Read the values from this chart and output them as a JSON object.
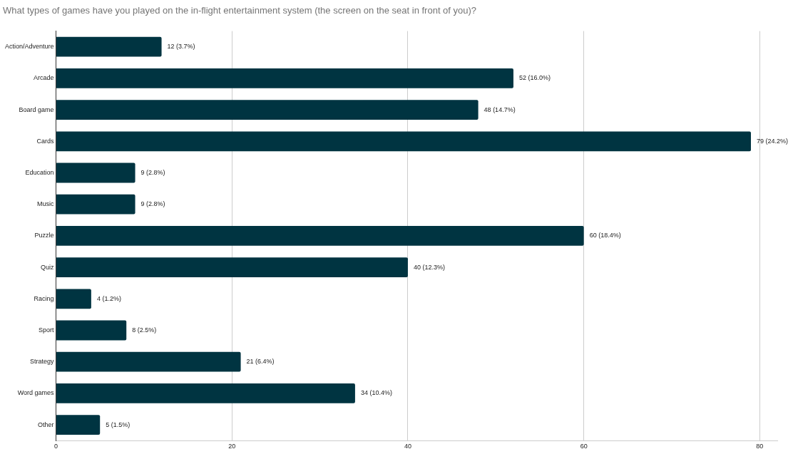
{
  "chart_data": {
    "type": "bar",
    "orientation": "horizontal",
    "title": "What types of games have you played on the in-flight entertainment system (the screen on the seat in front of you)?",
    "categories": [
      "Action/Adventure",
      "Arcade",
      "Board game",
      "Cards",
      "Education",
      "Music",
      "Puzzle",
      "Quiz",
      "Racing",
      "Sport",
      "Strategy",
      "Word games",
      "Other"
    ],
    "values": [
      12,
      52,
      48,
      79,
      9,
      9,
      60,
      40,
      4,
      8,
      21,
      34,
      5
    ],
    "value_labels": [
      "12 (3.7%)",
      "52 (16.0%)",
      "48 (14.7%)",
      "79 (24.2%)",
      "9 (2.8%)",
      "9 (2.8%)",
      "60 (18.4%)",
      "40 (12.3%)",
      "4 (1.2%)",
      "8 (2.5%)",
      "21 (6.4%)",
      "34 (10.4%)",
      "5 (1.5%)"
    ],
    "color": "#003441",
    "xlim": [
      0,
      82
    ],
    "xticks": [
      0,
      20,
      40,
      60,
      80
    ],
    "grid": "x",
    "legend": false
  }
}
